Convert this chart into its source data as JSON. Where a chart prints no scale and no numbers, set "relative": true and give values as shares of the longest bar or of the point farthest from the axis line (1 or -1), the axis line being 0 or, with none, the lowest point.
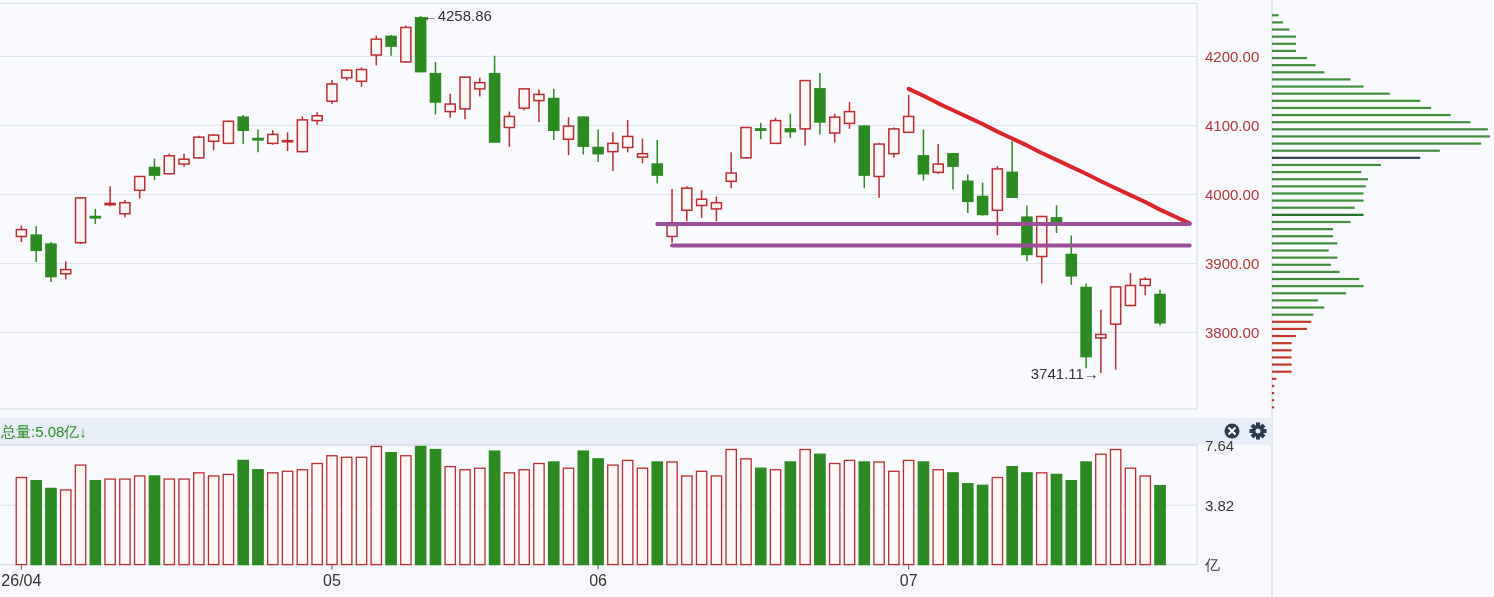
{
  "chart_data": [
    {
      "type": "candlestick",
      "categories": [
        null,
        null,
        null,
        null,
        null,
        null,
        null,
        null,
        null,
        null,
        null,
        null,
        null,
        null,
        null,
        null,
        null,
        null,
        null,
        null,
        null,
        null,
        null,
        null,
        null,
        null,
        null,
        null,
        null,
        null,
        null,
        null,
        null,
        null,
        null,
        null,
        null,
        null,
        null,
        null,
        null,
        null,
        null,
        null,
        null,
        null,
        null,
        null,
        null,
        null,
        null,
        null,
        null,
        null,
        null,
        null,
        null,
        null,
        null,
        null,
        null,
        null,
        null,
        null,
        null,
        null,
        null,
        null,
        null,
        null,
        null,
        null,
        null,
        null,
        null,
        null,
        null,
        null,
        null,
        null
      ],
      "ohlc": [
        [
          3939,
          3955,
          3931,
          3949
        ],
        [
          3941,
          3954,
          3902,
          3919
        ],
        [
          3928,
          3931,
          3873,
          3881
        ],
        [
          3885,
          3903,
          3877,
          3891
        ],
        [
          3930,
          3996,
          3928,
          3995
        ],
        [
          3968,
          3979,
          3957,
          3966
        ],
        [
          3985,
          4012,
          3983,
          3987
        ],
        [
          3972,
          3992,
          3967,
          3988
        ],
        [
          4006,
          4027,
          3994,
          4026
        ],
        [
          4039,
          4052,
          4021,
          4028
        ],
        [
          4030,
          4059,
          4029,
          4056
        ],
        [
          4044,
          4059,
          4040,
          4051
        ],
        [
          4053,
          4085,
          4052,
          4083
        ],
        [
          4077,
          4087,
          4064,
          4086
        ],
        [
          4074,
          4107,
          4073,
          4106
        ],
        [
          4112,
          4115,
          4073,
          4093
        ],
        [
          4081,
          4094,
          4061,
          4079
        ],
        [
          4074,
          4093,
          4072,
          4087
        ],
        [
          4077,
          4090,
          4063,
          4078
        ],
        [
          4062,
          4113,
          4061,
          4108
        ],
        [
          4107,
          4119,
          4101,
          4114
        ],
        [
          4135,
          4166,
          4131,
          4160
        ],
        [
          4169,
          4181,
          4165,
          4180
        ],
        [
          4164,
          4184,
          4156,
          4181
        ],
        [
          4202,
          4230,
          4187,
          4225
        ],
        [
          4229,
          4231,
          4201,
          4215
        ],
        [
          4192,
          4245,
          4191,
          4242
        ],
        [
          4256,
          4258.86,
          4177,
          4178
        ],
        [
          4175,
          4192,
          4116,
          4134
        ],
        [
          4120,
          4146,
          4111,
          4131
        ],
        [
          4124,
          4171,
          4109,
          4170
        ],
        [
          4153,
          4169,
          4142,
          4162
        ],
        [
          4175,
          4201,
          4075,
          4076
        ],
        [
          4097,
          4120,
          4069,
          4113
        ],
        [
          4125,
          4154,
          4122,
          4153
        ],
        [
          4136,
          4152,
          4105,
          4145
        ],
        [
          4139,
          4153,
          4079,
          4093
        ],
        [
          4080,
          4112,
          4057,
          4099
        ],
        [
          4112,
          4113,
          4058,
          4070
        ],
        [
          4068,
          4094,
          4047,
          4059
        ],
        [
          4062,
          4090,
          4034,
          4074
        ],
        [
          4068,
          4108,
          4061,
          4084
        ],
        [
          4054,
          4081,
          4045,
          4059
        ],
        [
          4044,
          4079,
          4016,
          4028
        ],
        [
          3939,
          4008,
          3930,
          3955
        ],
        [
          3977,
          4012,
          3961,
          4009
        ],
        [
          3984,
          4006,
          3966,
          3993
        ],
        [
          3979,
          3997,
          3961,
          3988
        ],
        [
          4019,
          4061,
          4009,
          4031
        ],
        [
          4053,
          4098,
          4052,
          4097
        ],
        [
          4095,
          4104,
          4080,
          4093
        ],
        [
          4074,
          4111,
          4074,
          4107
        ],
        [
          4095,
          4117,
          4082,
          4091
        ],
        [
          4095,
          4166,
          4071,
          4165
        ],
        [
          4153,
          4176,
          4087,
          4105
        ],
        [
          4089,
          4117,
          4075,
          4112
        ],
        [
          4103,
          4134,
          4095,
          4120
        ],
        [
          4099,
          4100,
          4009,
          4028
        ],
        [
          4026,
          4075,
          3995,
          4073
        ],
        [
          4059,
          4097,
          4053,
          4095
        ],
        [
          4090,
          4144,
          4089,
          4113
        ],
        [
          4056,
          4094,
          4020,
          4030
        ],
        [
          4032,
          4073,
          4030,
          4044
        ],
        [
          4059,
          4060,
          4007,
          4041
        ],
        [
          4019,
          4029,
          3973,
          3990
        ],
        [
          3997,
          4017,
          3969,
          3971
        ],
        [
          3977,
          4041,
          3941,
          4037
        ],
        [
          4032,
          4077,
          3995,
          3996
        ],
        [
          3967,
          3984,
          3903,
          3913
        ],
        [
          3910,
          3969,
          3871,
          3968
        ],
        [
          3966,
          3984,
          3944,
          3959
        ],
        [
          3913,
          3940.45,
          3869,
          3882
        ],
        [
          3865,
          3871,
          3748,
          3765
        ],
        [
          3792,
          3833,
          3741.11,
          3797
        ],
        [
          3812,
          3867,
          3746,
          3866
        ],
        [
          3839,
          3886,
          3838,
          3868
        ],
        [
          3868,
          3880,
          3854,
          3877
        ],
        [
          3855,
          3862,
          3810,
          3814
        ],
        null,
        null
      ],
      "colors": [
        "#bd2d32",
        "#2d8a22",
        "#2d8a22",
        "#bd2d32",
        "#bd2d32",
        "#2d8a22",
        "#bd2d32",
        "#bd2d32",
        "#bd2d32",
        "#2d8a22",
        "#bd2d32",
        "#bd2d32",
        "#bd2d32",
        "#bd2d32",
        "#bd2d32",
        "#2d8a22",
        "#2d8a22",
        "#bd2d32",
        "#bd2d32",
        "#bd2d32",
        "#bd2d32",
        "#bd2d32",
        "#bd2d32",
        "#bd2d32",
        "#bd2d32",
        "#2d8a22",
        "#bd2d32",
        "#2d8a22",
        "#2d8a22",
        "#bd2d32",
        "#bd2d32",
        "#bd2d32",
        "#2d8a22",
        "#bd2d32",
        "#bd2d32",
        "#bd2d32",
        "#2d8a22",
        "#bd2d32",
        "#2d8a22",
        "#2d8a22",
        "#bd2d32",
        "#bd2d32",
        "#bd2d32",
        "#2d8a22",
        "#bd2d32",
        "#bd2d32",
        "#bd2d32",
        "#bd2d32",
        "#bd2d32",
        "#bd2d32",
        "#2d8a22",
        "#bd2d32",
        "#2d8a22",
        "#bd2d32",
        "#2d8a22",
        "#bd2d32",
        "#bd2d32",
        "#2d8a22",
        "#bd2d32",
        "#bd2d32",
        "#bd2d32",
        "#2d8a22",
        "#bd2d32",
        "#2d8a22",
        "#2d8a22",
        "#2d8a22",
        "#bd2d32",
        "#2d8a22",
        "#2d8a22",
        "#bd2d32",
        "#2d8a22",
        "#2d8a22",
        "#2d8a22",
        "#bd2d32",
        "#bd2d32",
        "#bd2d32",
        "#bd2d32",
        "#2d8a22",
        null,
        null
      ],
      "series": [
        {
          "type": "line",
          "color": "#d9262c",
          "values": [
            null,
            null,
            null,
            null,
            null,
            null,
            null,
            null,
            null,
            null,
            null,
            null,
            null,
            null,
            null,
            null,
            null,
            null,
            null,
            null,
            null,
            null,
            null,
            null,
            null,
            null,
            null,
            null,
            null,
            null,
            null,
            null,
            null,
            null,
            null,
            null,
            null,
            null,
            null,
            null,
            null,
            null,
            null,
            null,
            null,
            null,
            null,
            null,
            null,
            null,
            null,
            null,
            null,
            null,
            null,
            null,
            null,
            null,
            null,
            null,
            4153,
            4143,
            4132,
            4122,
            4112,
            4102,
            4091,
            4081,
            4071,
            4060,
            4050,
            4040,
            4030,
            4019,
            4009,
            3999,
            3989,
            3978,
            3968,
            3958
          ]
        },
        {
          "type": "line",
          "color": "#9a4f98",
          "values": [
            null,
            null,
            null,
            null,
            null,
            null,
            null,
            null,
            null,
            null,
            null,
            null,
            null,
            null,
            null,
            null,
            null,
            null,
            null,
            null,
            null,
            null,
            null,
            null,
            null,
            null,
            null,
            null,
            null,
            null,
            null,
            null,
            null,
            null,
            null,
            null,
            null,
            null,
            null,
            null,
            null,
            null,
            null,
            3957,
            3957,
            3957,
            3957,
            3957,
            3957,
            3957,
            3957,
            3957,
            3957,
            3957,
            3957,
            3957,
            3957,
            3957,
            3957,
            3957,
            3957,
            3957,
            3957,
            3957,
            3957,
            3957,
            3957,
            3957,
            3957,
            3957,
            3957,
            3957,
            3957,
            3957,
            3957,
            3957,
            3957,
            3957,
            3957,
            3957
          ]
        },
        {
          "type": "line",
          "color": "#9a4f98",
          "values": [
            null,
            null,
            null,
            null,
            null,
            null,
            null,
            null,
            null,
            null,
            null,
            null,
            null,
            null,
            null,
            null,
            null,
            null,
            null,
            null,
            null,
            null,
            null,
            null,
            null,
            null,
            null,
            null,
            null,
            null,
            null,
            null,
            null,
            null,
            null,
            null,
            null,
            null,
            null,
            null,
            null,
            null,
            null,
            null,
            3926,
            3926,
            3926,
            3926,
            3926,
            3926,
            3926,
            3926,
            3926,
            3926,
            3926,
            3926,
            3926,
            3926,
            3926,
            3926,
            3926,
            3926,
            3926,
            3926,
            3926,
            3926,
            3926,
            3926,
            3926,
            3926,
            3926,
            3926,
            3926,
            3926,
            3926,
            3926,
            3926,
            3926,
            3926,
            3926
          ]
        }
      ],
      "ylim": [
        3689,
        4277
      ],
      "yticks": [
        {
          "value": 3800,
          "label": "3800.00"
        },
        {
          "value": 3900,
          "label": "3900.00"
        },
        {
          "value": 4000,
          "label": "4000.00"
        },
        {
          "value": 4100,
          "label": "4100.00"
        },
        {
          "value": 4200,
          "label": "4200.00"
        }
      ],
      "grid": "y",
      "annotations": [
        "←4258.86",
        "3741.11→"
      ]
    },
    {
      "type": "bar",
      "orientation": "horizontal",
      "relative": true,
      "categories": [
        null,
        null,
        null,
        null,
        null,
        null,
        null,
        null,
        null,
        null,
        null,
        null,
        null,
        null,
        null,
        null,
        null,
        null,
        null,
        null,
        null,
        null,
        null,
        null,
        null,
        null,
        null,
        null,
        null,
        null,
        null,
        null,
        null,
        null,
        null,
        null,
        null,
        null,
        null,
        null,
        null,
        null,
        null,
        null,
        null,
        null,
        null,
        null,
        null,
        null,
        null,
        null,
        null,
        null,
        null,
        null
      ],
      "values": [
        0.03,
        0.05,
        0.08,
        0.11,
        0.11,
        0.11,
        0.16,
        0.2,
        0.24,
        0.36,
        0.42,
        0.54,
        0.68,
        0.73,
        0.82,
        0.91,
        0.99,
        1,
        0.96,
        0.77,
        0.68,
        0.5,
        0.41,
        0.44,
        0.43,
        0.42,
        0.42,
        0.38,
        0.42,
        0.36,
        0.28,
        0.28,
        0.3,
        0.26,
        0.3,
        0.27,
        0.31,
        0.4,
        0.42,
        0.34,
        0.21,
        0.24,
        0.19,
        0.18,
        0.16,
        0.11,
        0.09,
        0.09,
        0.09,
        0.09,
        0.09,
        0.02,
        0.01,
        0.01,
        0.01,
        0.01
      ],
      "colors": [
        "#3f8f3a",
        "#3f8f3a",
        "#3f8f3a",
        "#3f8f3a",
        "#3f8f3a",
        "#3f8f3a",
        "#3f8f3a",
        "#3f8f3a",
        "#3f8f3a",
        "#3f8f3a",
        "#3f8f3a",
        "#3f8f3a",
        "#3f8f3a",
        "#3f8f3a",
        "#3f8f3a",
        "#3f8f3a",
        "#3f8f3a",
        "#3f8f3a",
        "#3f8f3a",
        "#3f8f3a",
        "#2c3e50",
        "#3f8f3a",
        "#3f8f3a",
        "#3f8f3a",
        "#3f8f3a",
        "#3f8f3a",
        "#3f8f3a",
        "#3f8f3a",
        "#23702a",
        "#3f8f3a",
        "#3f8f3a",
        "#3f8f3a",
        "#3f8f3a",
        "#3f8f3a",
        "#3f8f3a",
        "#3f8f3a",
        "#3f8f3a",
        "#3f8f3a",
        "#3f8f3a",
        "#3f8f3a",
        "#3f8f3a",
        "#3f8f3a",
        "#3f8f3a",
        "#c0392b",
        "#c0392b",
        "#c0392b",
        "#c0392b",
        "#c0392b",
        "#c0392b",
        "#c0392b",
        "#c0392b",
        "#c0392b",
        "#c0392b",
        "#c0392b",
        "#c0392b",
        "#c0392b"
      ]
    },
    {
      "type": "bar",
      "title": "总量:5.08亿↓",
      "categories": [
        "26/04",
        null,
        null,
        null,
        null,
        null,
        null,
        null,
        null,
        null,
        null,
        null,
        null,
        null,
        null,
        null,
        null,
        null,
        null,
        null,
        null,
        "05",
        null,
        null,
        null,
        null,
        null,
        null,
        null,
        null,
        null,
        null,
        null,
        null,
        null,
        null,
        null,
        null,
        null,
        "06",
        null,
        null,
        null,
        null,
        null,
        null,
        null,
        null,
        null,
        null,
        null,
        null,
        null,
        null,
        null,
        null,
        null,
        null,
        null,
        null,
        "07",
        null,
        null,
        null,
        null,
        null,
        null,
        null,
        null,
        null,
        null,
        null,
        null,
        null,
        null,
        null,
        null,
        null,
        null,
        null
      ],
      "values": [
        5.6,
        5.4,
        4.9,
        4.8,
        6.4,
        5.4,
        5.5,
        5.5,
        5.7,
        5.7,
        5.5,
        5.5,
        5.9,
        5.7,
        5.8,
        6.7,
        6.1,
        5.9,
        6.0,
        6.1,
        6.5,
        7.0,
        6.9,
        6.9,
        7.6,
        7.2,
        7.0,
        7.6,
        7.4,
        6.3,
        6.1,
        6.2,
        7.3,
        5.9,
        6.1,
        6.5,
        6.6,
        6.2,
        7.3,
        6.8,
        6.4,
        6.7,
        6.2,
        6.6,
        6.6,
        5.7,
        6.0,
        5.7,
        7.4,
        6.8,
        6.2,
        6.1,
        6.6,
        7.4,
        7.1,
        6.5,
        6.7,
        6.6,
        6.6,
        6.0,
        6.7,
        6.6,
        6.1,
        5.9,
        5.2,
        5.1,
        5.6,
        6.3,
        5.9,
        5.9,
        5.8,
        5.4,
        6.6,
        7.1,
        7.4,
        6.2,
        5.7,
        5.08,
        null,
        null
      ],
      "colors": [
        "#bd2d32",
        "#2d8a22",
        "#2d8a22",
        "#bd2d32",
        "#bd2d32",
        "#2d8a22",
        "#bd2d32",
        "#bd2d32",
        "#bd2d32",
        "#2d8a22",
        "#bd2d32",
        "#bd2d32",
        "#bd2d32",
        "#bd2d32",
        "#bd2d32",
        "#2d8a22",
        "#2d8a22",
        "#bd2d32",
        "#bd2d32",
        "#bd2d32",
        "#bd2d32",
        "#bd2d32",
        "#bd2d32",
        "#bd2d32",
        "#bd2d32",
        "#2d8a22",
        "#bd2d32",
        "#2d8a22",
        "#2d8a22",
        "#bd2d32",
        "#bd2d32",
        "#bd2d32",
        "#2d8a22",
        "#bd2d32",
        "#bd2d32",
        "#bd2d32",
        "#2d8a22",
        "#bd2d32",
        "#2d8a22",
        "#2d8a22",
        "#bd2d32",
        "#bd2d32",
        "#bd2d32",
        "#2d8a22",
        "#bd2d32",
        "#bd2d32",
        "#bd2d32",
        "#bd2d32",
        "#bd2d32",
        "#bd2d32",
        "#2d8a22",
        "#bd2d32",
        "#2d8a22",
        "#bd2d32",
        "#2d8a22",
        "#bd2d32",
        "#bd2d32",
        "#2d8a22",
        "#bd2d32",
        "#bd2d32",
        "#bd2d32",
        "#2d8a22",
        "#bd2d32",
        "#2d8a22",
        "#2d8a22",
        "#2d8a22",
        "#bd2d32",
        "#2d8a22",
        "#2d8a22",
        "#bd2d32",
        "#2d8a22",
        "#2d8a22",
        "#2d8a22",
        "#bd2d32",
        "#bd2d32",
        "#bd2d32",
        "#bd2d32",
        "#2d8a22",
        null,
        null
      ],
      "ylim": [
        0,
        7.71
      ],
      "yticks": [
        {
          "value": 0,
          "label": "亿"
        },
        3.82,
        7.64
      ],
      "grid": "y"
    }
  ]
}
